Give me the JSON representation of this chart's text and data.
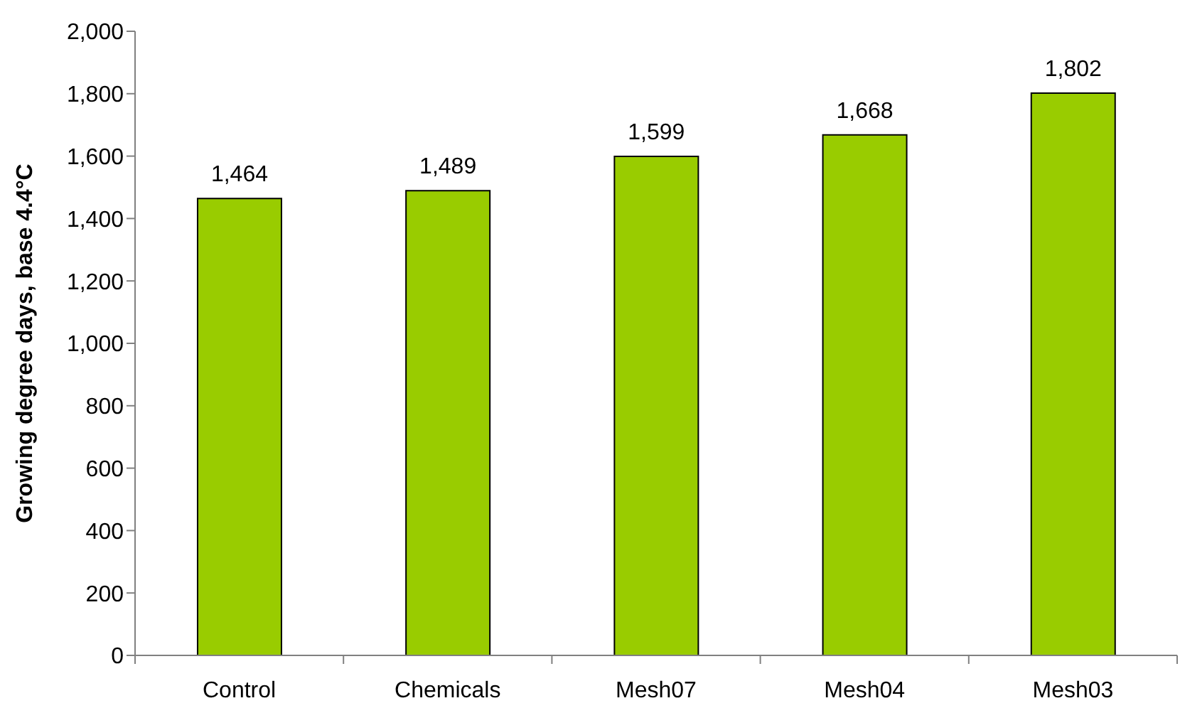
{
  "chart_data": {
    "type": "bar",
    "ylabel": "Growing degree days, base 4.4°C",
    "categories": [
      "Control",
      "Chemicals",
      "Mesh07",
      "Mesh04",
      "Mesh03"
    ],
    "values": [
      1464,
      1489,
      1599,
      1668,
      1802
    ],
    "value_labels": [
      "1,464",
      "1,489",
      "1,599",
      "1,668",
      "1,802"
    ],
    "color": "#99cc00",
    "ylim": [
      0,
      2000
    ],
    "yticks": [
      0,
      200,
      400,
      600,
      800,
      {
        "value": 1000,
        "label": "1,000"
      },
      {
        "value": 1200,
        "label": "1,200"
      },
      {
        "value": 1400,
        "label": "1,400"
      },
      {
        "value": 1600,
        "label": "1,600"
      },
      {
        "value": 1800,
        "label": "1,800"
      },
      {
        "value": 2000,
        "label": "2,000"
      }
    ]
  }
}
